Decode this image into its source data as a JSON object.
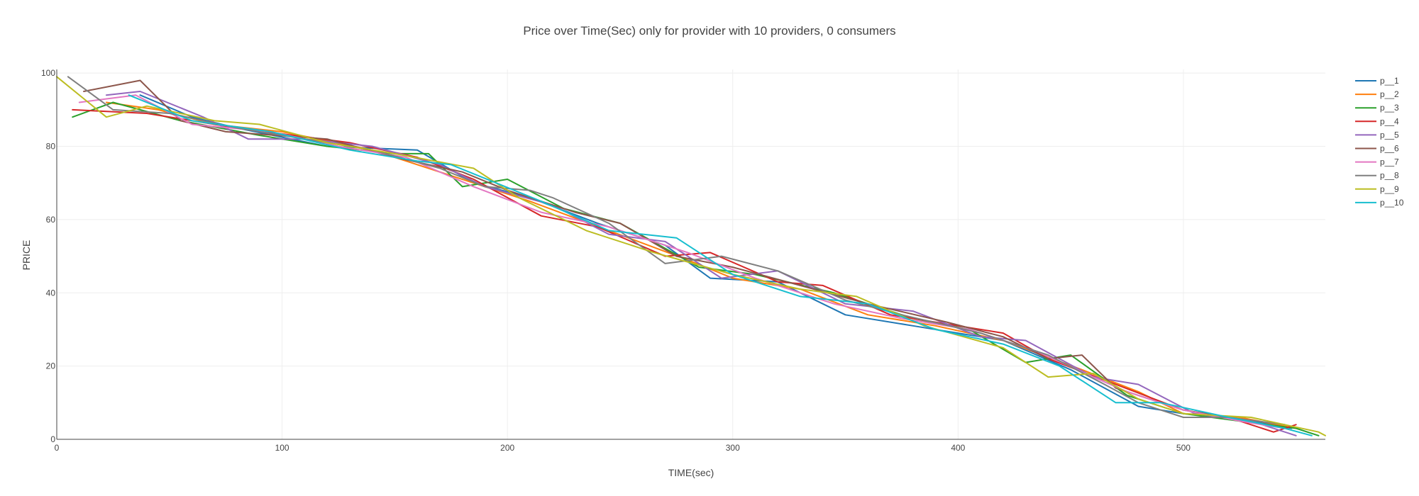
{
  "chart_data": {
    "type": "line",
    "title": "Price over Time(Sec) only for provider with 10 providers, 0 consumers",
    "xlabel": "TIME(sec)",
    "ylabel": "PRICE",
    "xlim": [
      0,
      563
    ],
    "ylim": [
      0,
      101
    ],
    "xticks": [
      0,
      100,
      200,
      300,
      400,
      500
    ],
    "yticks": [
      0,
      20,
      40,
      60,
      80,
      100
    ],
    "grid": true,
    "legend_position": "right",
    "series": [
      {
        "name": "p__1",
        "color": "#1f77b4",
        "points": [
          [
            37,
            94
          ],
          [
            60,
            88
          ],
          [
            80,
            85
          ],
          [
            120,
            80
          ],
          [
            160,
            79
          ],
          [
            185,
            70
          ],
          [
            210,
            66
          ],
          [
            240,
            59
          ],
          [
            270,
            53
          ],
          [
            290,
            44
          ],
          [
            320,
            43
          ],
          [
            350,
            34
          ],
          [
            380,
            31
          ],
          [
            420,
            27
          ],
          [
            450,
            19
          ],
          [
            480,
            9
          ],
          [
            500,
            7
          ],
          [
            530,
            5
          ],
          [
            548,
            3
          ]
        ]
      },
      {
        "name": "p__2",
        "color": "#ff7f0e",
        "points": [
          [
            22,
            92
          ],
          [
            45,
            90
          ],
          [
            70,
            86
          ],
          [
            100,
            84
          ],
          [
            140,
            79
          ],
          [
            175,
            72
          ],
          [
            210,
            65
          ],
          [
            245,
            57
          ],
          [
            280,
            49
          ],
          [
            300,
            44
          ],
          [
            330,
            41
          ],
          [
            360,
            34
          ],
          [
            390,
            31
          ],
          [
            420,
            27
          ],
          [
            455,
            19
          ],
          [
            480,
            13
          ],
          [
            500,
            7
          ],
          [
            525,
            6
          ],
          [
            550,
            3
          ]
        ]
      },
      {
        "name": "p__3",
        "color": "#2ca02c",
        "points": [
          [
            7,
            88
          ],
          [
            25,
            92
          ],
          [
            55,
            87
          ],
          [
            90,
            83
          ],
          [
            120,
            80
          ],
          [
            150,
            78
          ],
          [
            165,
            78
          ],
          [
            180,
            69
          ],
          [
            200,
            71
          ],
          [
            225,
            63
          ],
          [
            250,
            59
          ],
          [
            285,
            47
          ],
          [
            310,
            45
          ],
          [
            345,
            40
          ],
          [
            380,
            33
          ],
          [
            405,
            30
          ],
          [
            430,
            21
          ],
          [
            450,
            23
          ],
          [
            475,
            12
          ],
          [
            500,
            7
          ],
          [
            525,
            5
          ],
          [
            550,
            3
          ],
          [
            560,
            1
          ]
        ]
      },
      {
        "name": "p__4",
        "color": "#d62728",
        "points": [
          [
            7,
            90
          ],
          [
            40,
            89
          ],
          [
            80,
            85
          ],
          [
            105,
            83
          ],
          [
            130,
            81
          ],
          [
            160,
            77
          ],
          [
            185,
            71
          ],
          [
            215,
            61
          ],
          [
            240,
            58
          ],
          [
            270,
            50
          ],
          [
            290,
            51
          ],
          [
            320,
            43
          ],
          [
            340,
            42
          ],
          [
            370,
            34
          ],
          [
            400,
            31
          ],
          [
            420,
            29
          ],
          [
            440,
            22
          ],
          [
            470,
            15
          ],
          [
            500,
            8
          ],
          [
            520,
            6
          ],
          [
            540,
            2
          ],
          [
            550,
            4
          ]
        ]
      },
      {
        "name": "p__5",
        "color": "#9467bd",
        "points": [
          [
            22,
            94
          ],
          [
            37,
            95
          ],
          [
            65,
            88
          ],
          [
            85,
            82
          ],
          [
            110,
            82
          ],
          [
            140,
            80
          ],
          [
            170,
            75
          ],
          [
            190,
            69
          ],
          [
            220,
            64
          ],
          [
            245,
            56
          ],
          [
            270,
            54
          ],
          [
            295,
            44
          ],
          [
            320,
            46
          ],
          [
            350,
            37
          ],
          [
            380,
            35
          ],
          [
            410,
            28
          ],
          [
            430,
            27
          ],
          [
            460,
            17
          ],
          [
            480,
            15
          ],
          [
            505,
            7
          ],
          [
            530,
            5
          ],
          [
            550,
            1
          ]
        ]
      },
      {
        "name": "p__6",
        "color": "#8c564b",
        "points": [
          [
            12,
            95
          ],
          [
            37,
            98
          ],
          [
            55,
            87
          ],
          [
            75,
            84
          ],
          [
            120,
            82
          ],
          [
            150,
            77
          ],
          [
            180,
            73
          ],
          [
            200,
            68
          ],
          [
            230,
            62
          ],
          [
            250,
            59
          ],
          [
            275,
            50
          ],
          [
            300,
            47
          ],
          [
            330,
            42
          ],
          [
            360,
            37
          ],
          [
            395,
            32
          ],
          [
            420,
            28
          ],
          [
            440,
            22
          ],
          [
            455,
            23
          ],
          [
            470,
            14
          ],
          [
            500,
            8
          ],
          [
            520,
            6
          ],
          [
            545,
            3
          ]
        ]
      },
      {
        "name": "p__7",
        "color": "#e377c2",
        "points": [
          [
            10,
            92
          ],
          [
            35,
            94
          ],
          [
            60,
            86
          ],
          [
            95,
            84
          ],
          [
            125,
            80
          ],
          [
            155,
            77
          ],
          [
            185,
            69
          ],
          [
            215,
            62
          ],
          [
            245,
            58
          ],
          [
            280,
            51
          ],
          [
            310,
            44
          ],
          [
            345,
            37
          ],
          [
            375,
            33
          ],
          [
            405,
            30
          ],
          [
            435,
            24
          ],
          [
            460,
            17
          ],
          [
            475,
            13
          ],
          [
            500,
            8
          ],
          [
            525,
            5
          ],
          [
            545,
            3
          ]
        ]
      },
      {
        "name": "p__8",
        "color": "#7f7f7f",
        "points": [
          [
            5,
            99
          ],
          [
            25,
            90
          ],
          [
            50,
            89
          ],
          [
            80,
            85
          ],
          [
            110,
            82
          ],
          [
            140,
            79
          ],
          [
            170,
            74
          ],
          [
            190,
            69
          ],
          [
            210,
            68
          ],
          [
            220,
            66
          ],
          [
            245,
            59
          ],
          [
            270,
            48
          ],
          [
            295,
            50
          ],
          [
            320,
            46
          ],
          [
            350,
            38
          ],
          [
            375,
            34
          ],
          [
            410,
            29
          ],
          [
            440,
            23
          ],
          [
            465,
            15
          ],
          [
            480,
            10
          ],
          [
            500,
            6
          ],
          [
            520,
            6
          ],
          [
            545,
            4
          ]
        ]
      },
      {
        "name": "p__9",
        "color": "#bcbd22",
        "points": [
          [
            0,
            99
          ],
          [
            22,
            88
          ],
          [
            40,
            91
          ],
          [
            70,
            87
          ],
          [
            90,
            86
          ],
          [
            120,
            81
          ],
          [
            150,
            78
          ],
          [
            185,
            74
          ],
          [
            205,
            66
          ],
          [
            235,
            57
          ],
          [
            265,
            51
          ],
          [
            300,
            45
          ],
          [
            330,
            41
          ],
          [
            355,
            39
          ],
          [
            385,
            31
          ],
          [
            420,
            25
          ],
          [
            440,
            17
          ],
          [
            460,
            18
          ],
          [
            480,
            11
          ],
          [
            500,
            7
          ],
          [
            530,
            6
          ],
          [
            560,
            2
          ],
          [
            563,
            1
          ]
        ]
      },
      {
        "name": "p__10",
        "color": "#17becf",
        "points": [
          [
            32,
            94
          ],
          [
            60,
            87
          ],
          [
            95,
            84
          ],
          [
            130,
            79
          ],
          [
            160,
            76
          ],
          [
            175,
            75
          ],
          [
            195,
            70
          ],
          [
            215,
            65
          ],
          [
            245,
            57
          ],
          [
            275,
            55
          ],
          [
            300,
            45
          ],
          [
            330,
            39
          ],
          [
            360,
            37
          ],
          [
            390,
            30
          ],
          [
            420,
            26
          ],
          [
            445,
            20
          ],
          [
            470,
            10
          ],
          [
            490,
            10
          ],
          [
            520,
            6
          ],
          [
            545,
            3
          ],
          [
            557,
            1
          ]
        ]
      }
    ]
  }
}
